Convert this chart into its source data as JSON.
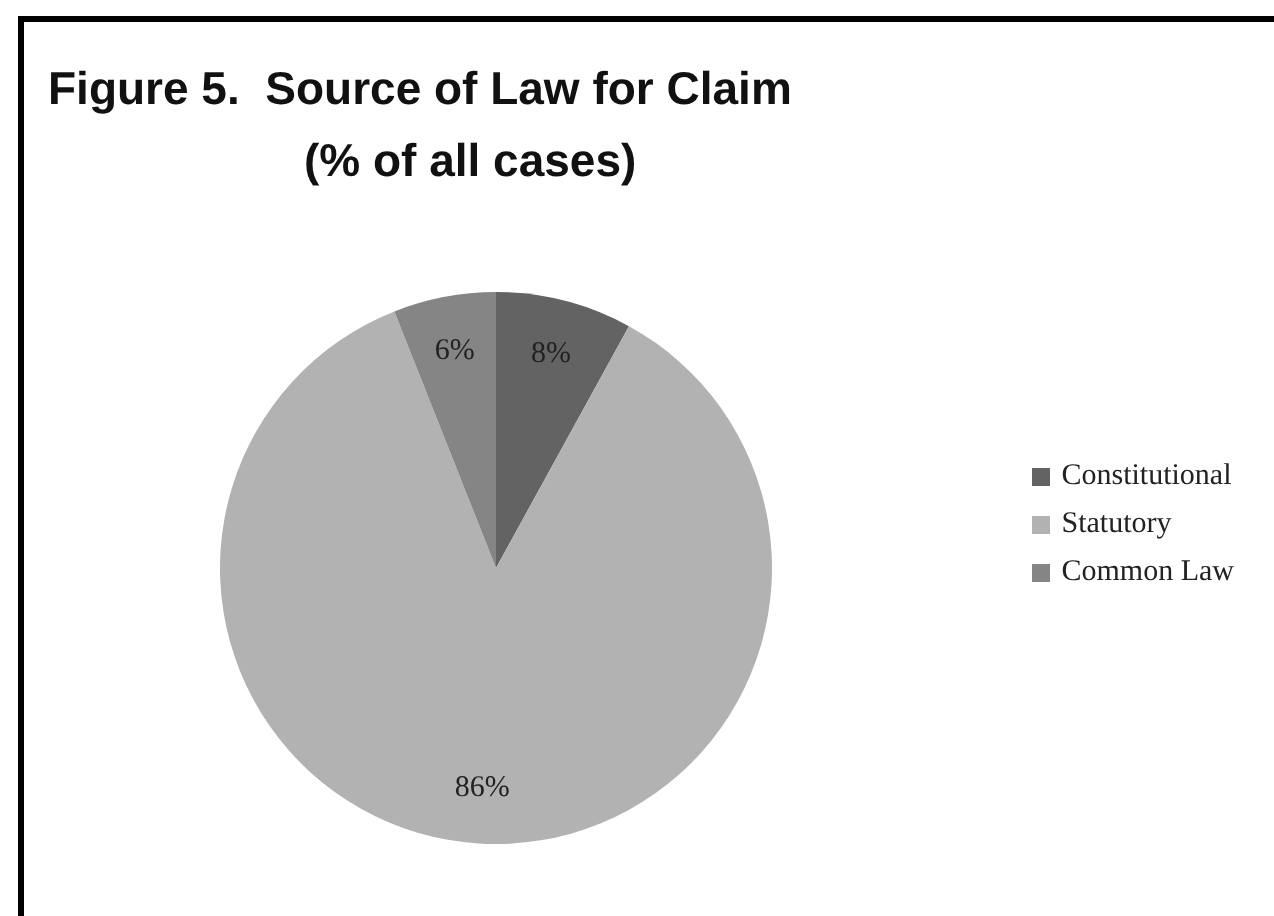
{
  "chart_data": {
    "type": "pie",
    "title": "Figure 5.  Source of Law for Claim",
    "subtitle": "(% of all cases)",
    "categories": [
      "Constitutional",
      "Statutory",
      "Common Law"
    ],
    "values": [
      8,
      86,
      6
    ],
    "colors": [
      "#636363",
      "#b2b2b2",
      "#858585"
    ],
    "value_labels": [
      "8%",
      "86%",
      "6%"
    ],
    "legend": "right"
  }
}
